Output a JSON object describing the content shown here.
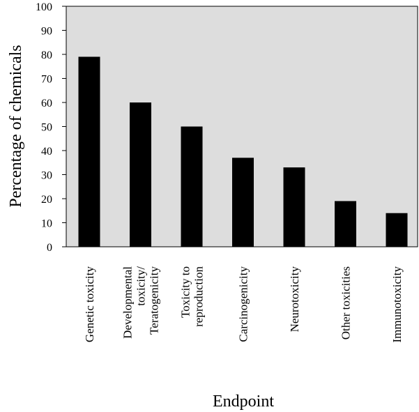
{
  "chart_data": {
    "type": "bar",
    "categories": [
      [
        "Genetic toxicity"
      ],
      [
        "Developmental",
        "toxicity/",
        "Teratogenicity"
      ],
      [
        "Toxicity to",
        "reproduction"
      ],
      [
        "Carcinogenicity"
      ],
      [
        "Neurotoxicity"
      ],
      [
        "Other toxicities"
      ],
      [
        "Immunotoxicity"
      ]
    ],
    "values": [
      79,
      60,
      50,
      37,
      33,
      19,
      14
    ],
    "ylim": [
      0,
      100
    ],
    "yticks": [
      0,
      10,
      20,
      30,
      40,
      50,
      60,
      70,
      80,
      90,
      100
    ],
    "xlabel": "Endpoint",
    "ylabel": "Percentage of chemicals",
    "grid": false,
    "plot_background": "#dddddd",
    "bar_color": "#000000"
  }
}
